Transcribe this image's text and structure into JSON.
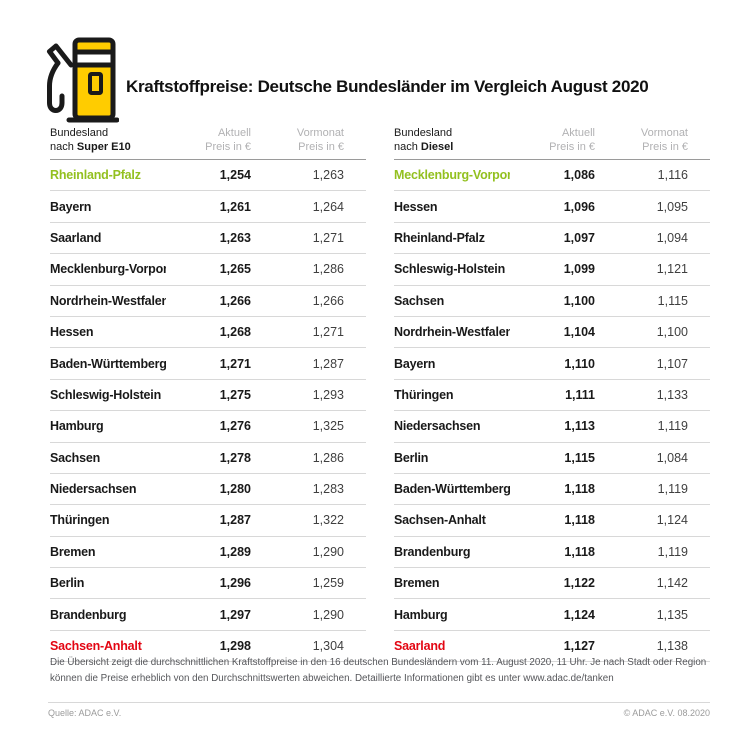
{
  "header": {
    "title": "Kraftstoffpreise: Deutsche Bundesländer im Vergleich August 2020",
    "icon": "fuel-pump-icon"
  },
  "columns": {
    "bundesland_label": "Bundesland",
    "nach_prefix": "nach ",
    "aktuell_line1": "Aktuell",
    "aktuell_line2": "Preis in €",
    "vormonat_line1": "Vormonat",
    "vormonat_line2": "Preis in €"
  },
  "tables": [
    {
      "fuel": "Super E10",
      "rows": [
        {
          "name": "Rheinland-Pfalz",
          "aktuell": "1,254",
          "vormonat": "1,263",
          "highlight": "green"
        },
        {
          "name": "Bayern",
          "aktuell": "1,261",
          "vormonat": "1,264",
          "highlight": "none"
        },
        {
          "name": "Saarland",
          "aktuell": "1,263",
          "vormonat": "1,271",
          "highlight": "none"
        },
        {
          "name": "Mecklenburg-Vorpommern",
          "aktuell": "1,265",
          "vormonat": "1,286",
          "highlight": "none"
        },
        {
          "name": "Nordrhein-Westfalen",
          "aktuell": "1,266",
          "vormonat": "1,266",
          "highlight": "none"
        },
        {
          "name": "Hessen",
          "aktuell": "1,268",
          "vormonat": "1,271",
          "highlight": "none"
        },
        {
          "name": "Baden-Württemberg",
          "aktuell": "1,271",
          "vormonat": "1,287",
          "highlight": "none"
        },
        {
          "name": "Schleswig-Holstein",
          "aktuell": "1,275",
          "vormonat": "1,293",
          "highlight": "none"
        },
        {
          "name": "Hamburg",
          "aktuell": "1,276",
          "vormonat": "1,325",
          "highlight": "none"
        },
        {
          "name": "Sachsen",
          "aktuell": "1,278",
          "vormonat": "1,286",
          "highlight": "none"
        },
        {
          "name": "Niedersachsen",
          "aktuell": "1,280",
          "vormonat": "1,283",
          "highlight": "none"
        },
        {
          "name": "Thüringen",
          "aktuell": "1,287",
          "vormonat": "1,322",
          "highlight": "none"
        },
        {
          "name": "Bremen",
          "aktuell": "1,289",
          "vormonat": "1,290",
          "highlight": "none"
        },
        {
          "name": "Berlin",
          "aktuell": "1,296",
          "vormonat": "1,259",
          "highlight": "none"
        },
        {
          "name": "Brandenburg",
          "aktuell": "1,297",
          "vormonat": "1,290",
          "highlight": "none"
        },
        {
          "name": "Sachsen-Anhalt",
          "aktuell": "1,298",
          "vormonat": "1,304",
          "highlight": "red"
        }
      ]
    },
    {
      "fuel": "Diesel",
      "rows": [
        {
          "name": "Mecklenburg-Vorpommern",
          "aktuell": "1,086",
          "vormonat": "1,116",
          "highlight": "green"
        },
        {
          "name": "Hessen",
          "aktuell": "1,096",
          "vormonat": "1,095",
          "highlight": "none"
        },
        {
          "name": "Rheinland-Pfalz",
          "aktuell": "1,097",
          "vormonat": "1,094",
          "highlight": "none"
        },
        {
          "name": "Schleswig-Holstein",
          "aktuell": "1,099",
          "vormonat": "1,121",
          "highlight": "none"
        },
        {
          "name": "Sachsen",
          "aktuell": "1,100",
          "vormonat": "1,115",
          "highlight": "none"
        },
        {
          "name": "Nordrhein-Westfalen",
          "aktuell": "1,104",
          "vormonat": "1,100",
          "highlight": "none"
        },
        {
          "name": "Bayern",
          "aktuell": "1,110",
          "vormonat": "1,107",
          "highlight": "none"
        },
        {
          "name": "Thüringen",
          "aktuell": "1,111",
          "vormonat": "1,133",
          "highlight": "none"
        },
        {
          "name": "Niedersachsen",
          "aktuell": "1,113",
          "vormonat": "1,119",
          "highlight": "none"
        },
        {
          "name": "Berlin",
          "aktuell": "1,115",
          "vormonat": "1,084",
          "highlight": "none"
        },
        {
          "name": "Baden-Württemberg",
          "aktuell": "1,118",
          "vormonat": "1,119",
          "highlight": "none"
        },
        {
          "name": "Sachsen-Anhalt",
          "aktuell": "1,118",
          "vormonat": "1,124",
          "highlight": "none"
        },
        {
          "name": "Brandenburg",
          "aktuell": "1,118",
          "vormonat": "1,119",
          "highlight": "none"
        },
        {
          "name": "Bremen",
          "aktuell": "1,122",
          "vormonat": "1,142",
          "highlight": "none"
        },
        {
          "name": "Hamburg",
          "aktuell": "1,124",
          "vormonat": "1,135",
          "highlight": "none"
        },
        {
          "name": "Saarland",
          "aktuell": "1,127",
          "vormonat": "1,138",
          "highlight": "red"
        }
      ]
    }
  ],
  "footnote": {
    "text": "Die Übersicht zeigt die durchschnittlichen Kraftstoffpreise in den 16 deutschen Bundesländern vom 11. August 2020, 11 Uhr.  Je nach Stadt oder Region können die Preise erheblich von den Durchschnittswerten abweichen. Detaillierte Informationen gibt es unter www.adac.de/tanken"
  },
  "footer": {
    "source": "Quelle: ADAC e.V.",
    "copyright": "© ADAC e.V. 08.2020"
  },
  "colors": {
    "accent_green": "#93c01f",
    "accent_red": "#e30613",
    "brand_yellow": "#ffcc00",
    "header_gray": "#b1b1b3",
    "separator_gray": "#d8d8d8"
  },
  "chart_data": [
    {
      "type": "table",
      "title": "Kraftstoffpreise: Deutsche Bundesländer im Vergleich August 2020",
      "subtitle": "Super E10",
      "columns": [
        "Bundesland nach Super E10",
        "Aktuell Preis in €",
        "Vormonat Preis in €"
      ],
      "categories": [
        "Rheinland-Pfalz",
        "Bayern",
        "Saarland",
        "Mecklenburg-Vorpommern",
        "Nordrhein-Westfalen",
        "Hessen",
        "Baden-Württemberg",
        "Schleswig-Holstein",
        "Hamburg",
        "Sachsen",
        "Niedersachsen",
        "Thüringen",
        "Bremen",
        "Berlin",
        "Brandenburg",
        "Sachsen-Anhalt"
      ],
      "series": [
        {
          "name": "Aktuell",
          "values": [
            1.254,
            1.261,
            1.263,
            1.265,
            1.266,
            1.268,
            1.271,
            1.275,
            1.276,
            1.278,
            1.28,
            1.287,
            1.289,
            1.296,
            1.297,
            1.298
          ]
        },
        {
          "name": "Vormonat",
          "values": [
            1.263,
            1.264,
            1.271,
            1.286,
            1.266,
            1.271,
            1.287,
            1.293,
            1.325,
            1.286,
            1.283,
            1.322,
            1.29,
            1.259,
            1.29,
            1.304
          ]
        }
      ]
    },
    {
      "type": "table",
      "title": "Kraftstoffpreise: Deutsche Bundesländer im Vergleich August 2020",
      "subtitle": "Diesel",
      "columns": [
        "Bundesland nach Diesel",
        "Aktuell Preis in €",
        "Vormonat Preis in €"
      ],
      "categories": [
        "Mecklenburg-Vorpommern",
        "Hessen",
        "Rheinland-Pfalz",
        "Schleswig-Holstein",
        "Sachsen",
        "Nordrhein-Westfalen",
        "Bayern",
        "Thüringen",
        "Niedersachsen",
        "Berlin",
        "Baden-Württemberg",
        "Sachsen-Anhalt",
        "Brandenburg",
        "Bremen",
        "Hamburg",
        "Saarland"
      ],
      "series": [
        {
          "name": "Aktuell",
          "values": [
            1.086,
            1.096,
            1.097,
            1.099,
            1.1,
            1.104,
            1.11,
            1.111,
            1.113,
            1.115,
            1.118,
            1.118,
            1.118,
            1.122,
            1.124,
            1.127
          ]
        },
        {
          "name": "Vormonat",
          "values": [
            1.116,
            1.095,
            1.094,
            1.121,
            1.115,
            1.1,
            1.107,
            1.133,
            1.119,
            1.084,
            1.119,
            1.124,
            1.119,
            1.142,
            1.135,
            1.138
          ]
        }
      ]
    }
  ]
}
